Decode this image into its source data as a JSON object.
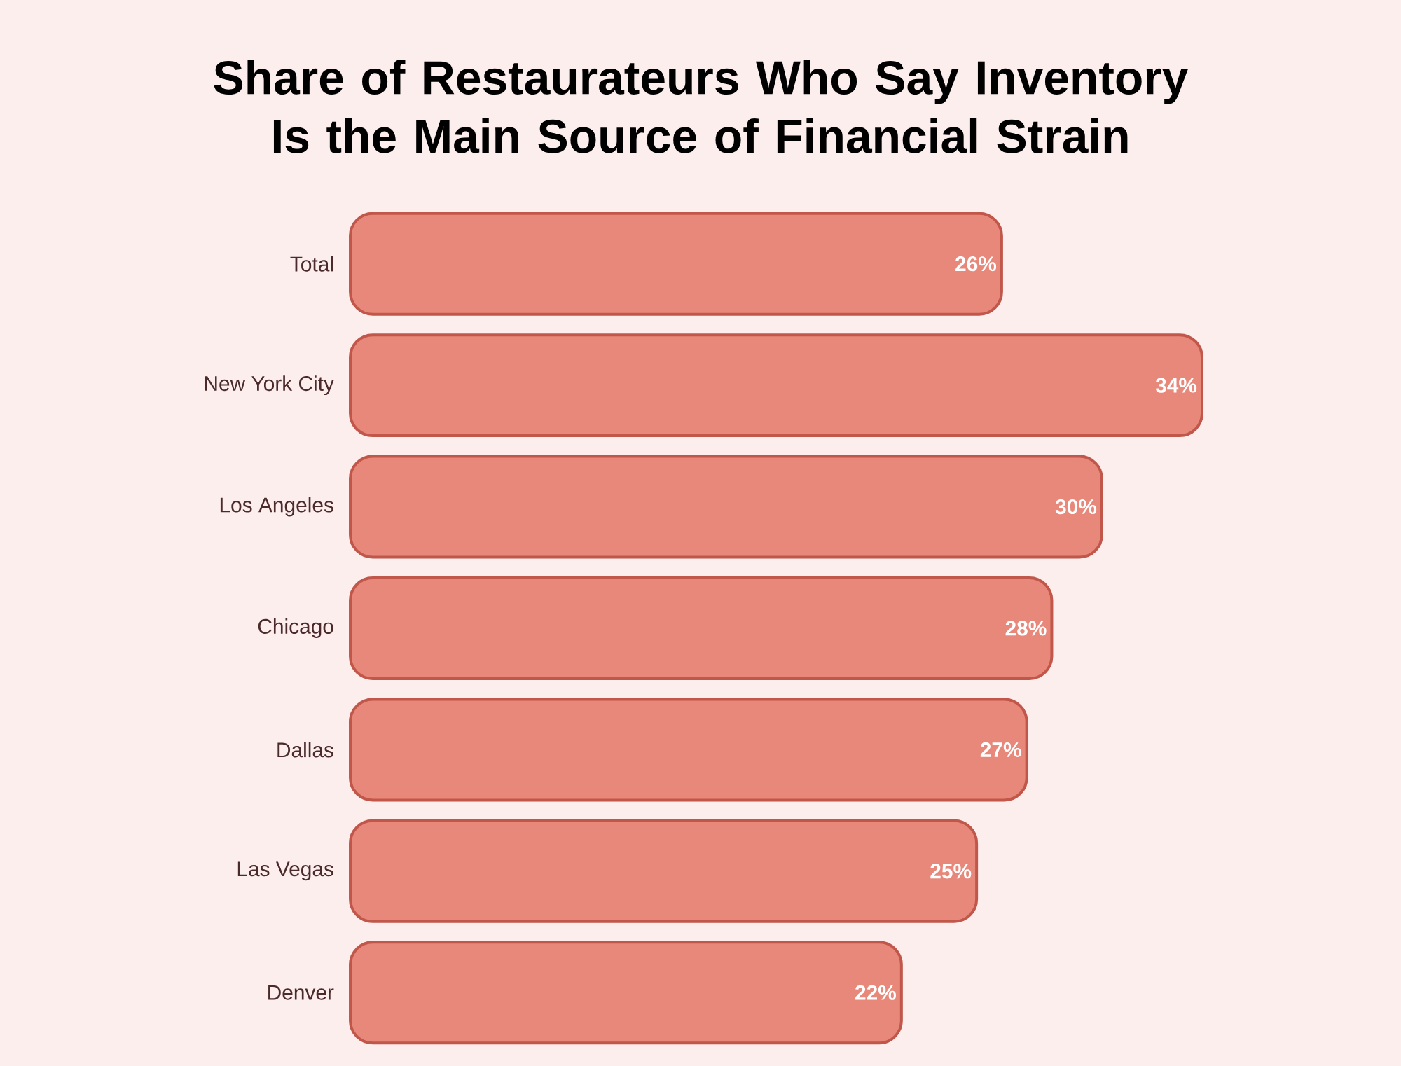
{
  "chart_data": {
    "type": "bar",
    "orientation": "horizontal",
    "title": "Share of Restaurateurs Who Say Inventory Is the Main Source of Financial Strain",
    "categories": [
      "Total",
      "New York City",
      "Los Angeles",
      "Chicago",
      "Dallas",
      "Las Vegas",
      "Denver"
    ],
    "values": [
      26,
      34,
      30,
      28,
      27,
      25,
      22
    ],
    "value_labels": [
      "26%",
      "34%",
      "30%",
      "28%",
      "27%",
      "25%",
      "22%"
    ],
    "color": "#e8887a"
  }
}
